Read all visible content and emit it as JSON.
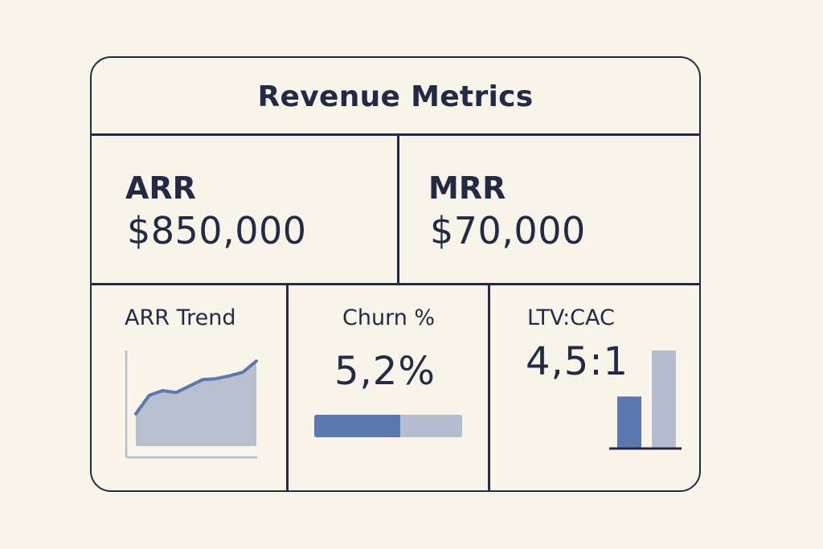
{
  "title": "Revenue Metrics",
  "arr": {
    "label": "ARR",
    "value": "$850,000"
  },
  "mrr": {
    "label": "MRR",
    "value": "$70,000"
  },
  "arr_trend": {
    "label": "ARR Trend",
    "series": [
      0.35,
      0.55,
      0.6,
      0.58,
      0.65,
      0.72,
      0.73,
      0.76,
      0.8,
      0.92
    ]
  },
  "churn": {
    "label": "Churn %",
    "value": "5,2%",
    "fill_fraction": 0.58
  },
  "ltv_cac": {
    "label": "LTV:CAC",
    "value": "4,5:1",
    "bars": [
      0.53,
      1.0
    ]
  },
  "colors": {
    "ink": "#232a45",
    "accent": "#5a78ad",
    "muted": "#b4bdcf",
    "background": "#f8f4ea"
  }
}
